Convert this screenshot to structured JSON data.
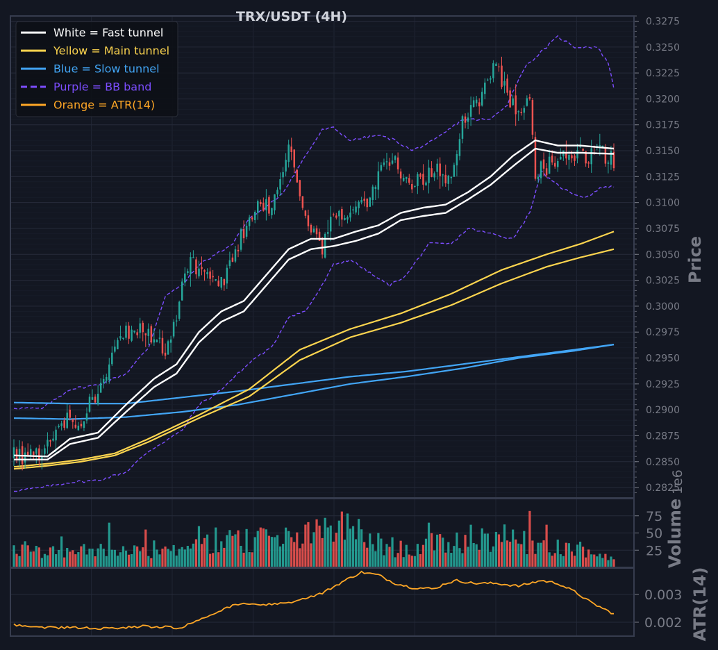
{
  "chart_data": [
    {
      "type": "candlestick",
      "title": "TRX/USDT (4H)",
      "ylabel": "Price",
      "ylim": [
        0.2815,
        0.328
      ],
      "y_ticks": [
        "0.2825",
        "0.2850",
        "0.2875",
        "0.2900",
        "0.2925",
        "0.2950",
        "0.2975",
        "0.3000",
        "0.3025",
        "0.3050",
        "0.3075",
        "0.3100",
        "0.3125",
        "0.3150",
        "0.3175",
        "0.3200",
        "0.3225",
        "0.3250",
        "0.3275"
      ],
      "grid": true,
      "legend_position": "top-left",
      "legend": [
        {
          "label": "White = Fast tunnel",
          "color": "#ffffff",
          "style": "solid"
        },
        {
          "label": "Yellow = Main tunnel",
          "color": "#fdd54f",
          "style": "solid"
        },
        {
          "label": "Blue = Slow tunnel",
          "color": "#42a5f5",
          "style": "solid"
        },
        {
          "label": "Purple = BB band",
          "color": "#7c4dff",
          "style": "dashed"
        },
        {
          "label": "Orange = ATR(14)",
          "color": "#ffa726",
          "style": "solid"
        }
      ],
      "candle_colors": {
        "up": "#26a69a",
        "down": "#ef5350"
      },
      "close_anchors": [
        [
          0,
          0.2855
        ],
        [
          10,
          0.286
        ],
        [
          16,
          0.289
        ],
        [
          20,
          0.289
        ],
        [
          24,
          0.289
        ],
        [
          30,
          0.292
        ],
        [
          35,
          0.295
        ],
        [
          40,
          0.2975
        ],
        [
          48,
          0.2975
        ],
        [
          54,
          0.296
        ],
        [
          58,
          0.299
        ],
        [
          62,
          0.304
        ],
        [
          68,
          0.3035
        ],
        [
          74,
          0.302
        ],
        [
          80,
          0.306
        ],
        [
          86,
          0.3095
        ],
        [
          92,
          0.3095
        ],
        [
          98,
          0.315
        ],
        [
          104,
          0.309
        ],
        [
          110,
          0.305
        ],
        [
          114,
          0.3095
        ],
        [
          120,
          0.3085
        ],
        [
          126,
          0.31
        ],
        [
          130,
          0.313
        ],
        [
          136,
          0.314
        ],
        [
          142,
          0.3115
        ],
        [
          150,
          0.3135
        ],
        [
          156,
          0.312
        ],
        [
          160,
          0.3175
        ],
        [
          164,
          0.319
        ],
        [
          168,
          0.321
        ],
        [
          172,
          0.324
        ],
        [
          176,
          0.32
        ],
        [
          180,
          0.319
        ],
        [
          184,
          0.32
        ],
        [
          186,
          0.313
        ],
        [
          190,
          0.3135
        ],
        [
          196,
          0.315
        ],
        [
          204,
          0.3145
        ],
        [
          210,
          0.3145
        ],
        [
          214,
          0.314
        ]
      ],
      "fast_tunnel": {
        "upper": [
          [
            0,
            0.2856
          ],
          [
            12,
            0.2855
          ],
          [
            20,
            0.2872
          ],
          [
            30,
            0.2878
          ],
          [
            40,
            0.2905
          ],
          [
            50,
            0.293
          ],
          [
            58,
            0.2944
          ],
          [
            66,
            0.2975
          ],
          [
            74,
            0.2995
          ],
          [
            82,
            0.3005
          ],
          [
            90,
            0.303
          ],
          [
            98,
            0.3055
          ],
          [
            106,
            0.3065
          ],
          [
            114,
            0.3065
          ],
          [
            122,
            0.3072
          ],
          [
            130,
            0.3078
          ],
          [
            138,
            0.309
          ],
          [
            146,
            0.3095
          ],
          [
            154,
            0.3098
          ],
          [
            162,
            0.311
          ],
          [
            170,
            0.3125
          ],
          [
            178,
            0.3145
          ],
          [
            186,
            0.316
          ],
          [
            194,
            0.3155
          ],
          [
            202,
            0.3155
          ],
          [
            214,
            0.3152
          ]
        ],
        "lower": [
          [
            0,
            0.2852
          ],
          [
            12,
            0.2852
          ],
          [
            20,
            0.2867
          ],
          [
            30,
            0.2873
          ],
          [
            40,
            0.2898
          ],
          [
            50,
            0.2922
          ],
          [
            58,
            0.2935
          ],
          [
            66,
            0.2965
          ],
          [
            74,
            0.2985
          ],
          [
            82,
            0.2995
          ],
          [
            90,
            0.302
          ],
          [
            98,
            0.3045
          ],
          [
            106,
            0.3055
          ],
          [
            114,
            0.3058
          ],
          [
            122,
            0.3063
          ],
          [
            130,
            0.307
          ],
          [
            138,
            0.3083
          ],
          [
            146,
            0.3087
          ],
          [
            154,
            0.309
          ],
          [
            162,
            0.3103
          ],
          [
            170,
            0.3117
          ],
          [
            178,
            0.3135
          ],
          [
            186,
            0.3152
          ],
          [
            194,
            0.3148
          ],
          [
            202,
            0.3148
          ],
          [
            214,
            0.3147
          ]
        ]
      },
      "main_tunnel": {
        "upper": [
          [
            0,
            0.2845
          ],
          [
            12,
            0.2848
          ],
          [
            24,
            0.2852
          ],
          [
            36,
            0.2858
          ],
          [
            48,
            0.2872
          ],
          [
            66,
            0.2895
          ],
          [
            84,
            0.292
          ],
          [
            102,
            0.2958
          ],
          [
            120,
            0.2978
          ],
          [
            138,
            0.2993
          ],
          [
            156,
            0.3012
          ],
          [
            174,
            0.3035
          ],
          [
            190,
            0.305
          ],
          [
            202,
            0.306
          ],
          [
            214,
            0.3072
          ]
        ],
        "lower": [
          [
            0,
            0.2843
          ],
          [
            12,
            0.2846
          ],
          [
            24,
            0.285
          ],
          [
            36,
            0.2856
          ],
          [
            48,
            0.2869
          ],
          [
            66,
            0.2892
          ],
          [
            84,
            0.2913
          ],
          [
            102,
            0.2948
          ],
          [
            120,
            0.297
          ],
          [
            138,
            0.2984
          ],
          [
            156,
            0.3001
          ],
          [
            174,
            0.3022
          ],
          [
            190,
            0.3038
          ],
          [
            202,
            0.3047
          ],
          [
            214,
            0.3055
          ]
        ]
      },
      "slow_tunnel": {
        "upper": [
          [
            0,
            0.2907
          ],
          [
            20,
            0.2906
          ],
          [
            40,
            0.2906
          ],
          [
            60,
            0.2912
          ],
          [
            80,
            0.2918
          ],
          [
            100,
            0.2925
          ],
          [
            120,
            0.2932
          ],
          [
            140,
            0.2937
          ],
          [
            160,
            0.2944
          ],
          [
            180,
            0.2951
          ],
          [
            200,
            0.2958
          ],
          [
            214,
            0.2963
          ]
        ],
        "lower": [
          [
            0,
            0.2892
          ],
          [
            20,
            0.2891
          ],
          [
            40,
            0.2893
          ],
          [
            60,
            0.2898
          ],
          [
            80,
            0.2905
          ],
          [
            100,
            0.2915
          ],
          [
            120,
            0.2925
          ],
          [
            140,
            0.2932
          ],
          [
            160,
            0.294
          ],
          [
            180,
            0.295
          ],
          [
            200,
            0.2957
          ],
          [
            214,
            0.2963
          ]
        ]
      },
      "bb_band": {
        "upper": [
          [
            0,
            0.2902
          ],
          [
            10,
            0.2901
          ],
          [
            20,
            0.292
          ],
          [
            30,
            0.2924
          ],
          [
            40,
            0.2935
          ],
          [
            48,
            0.296
          ],
          [
            54,
            0.301
          ],
          [
            60,
            0.302
          ],
          [
            66,
            0.304
          ],
          [
            72,
            0.305
          ],
          [
            78,
            0.306
          ],
          [
            84,
            0.3085
          ],
          [
            90,
            0.3095
          ],
          [
            96,
            0.311
          ],
          [
            104,
            0.3145
          ],
          [
            110,
            0.317
          ],
          [
            114,
            0.3172
          ],
          [
            120,
            0.316
          ],
          [
            130,
            0.3165
          ],
          [
            136,
            0.316
          ],
          [
            142,
            0.315
          ],
          [
            150,
            0.316
          ],
          [
            160,
            0.318
          ],
          [
            170,
            0.318
          ],
          [
            176,
            0.3195
          ],
          [
            182,
            0.323
          ],
          [
            188,
            0.3245
          ],
          [
            194,
            0.326
          ],
          [
            200,
            0.325
          ],
          [
            208,
            0.325
          ],
          [
            212,
            0.3235
          ],
          [
            214,
            0.321
          ]
        ],
        "lower": [
          [
            0,
            0.2822
          ],
          [
            10,
            0.2825
          ],
          [
            20,
            0.283
          ],
          [
            30,
            0.2832
          ],
          [
            40,
            0.284
          ],
          [
            48,
            0.286
          ],
          [
            54,
            0.287
          ],
          [
            60,
            0.288
          ],
          [
            66,
            0.2905
          ],
          [
            72,
            0.2915
          ],
          [
            80,
            0.2935
          ],
          [
            86,
            0.295
          ],
          [
            92,
            0.296
          ],
          [
            98,
            0.299
          ],
          [
            104,
            0.2995
          ],
          [
            110,
            0.302
          ],
          [
            114,
            0.304
          ],
          [
            120,
            0.3045
          ],
          [
            128,
            0.303
          ],
          [
            134,
            0.302
          ],
          [
            140,
            0.303
          ],
          [
            148,
            0.306
          ],
          [
            156,
            0.306
          ],
          [
            162,
            0.3075
          ],
          [
            170,
            0.307
          ],
          [
            178,
            0.3065
          ],
          [
            184,
            0.309
          ],
          [
            188,
            0.313
          ],
          [
            192,
            0.312
          ],
          [
            198,
            0.311
          ],
          [
            204,
            0.3105
          ],
          [
            210,
            0.3115
          ],
          [
            214,
            0.3115
          ]
        ]
      },
      "x_count": 215
    },
    {
      "type": "bar",
      "ylabel": "Volume",
      "scale_label": "1e6",
      "ylim": [
        0,
        100
      ],
      "y_ticks": [
        "25",
        "50",
        "75"
      ],
      "volume_anchors": [
        [
          0,
          25
        ],
        [
          20,
          25
        ],
        [
          40,
          30
        ],
        [
          60,
          28
        ],
        [
          70,
          40
        ],
        [
          80,
          45
        ],
        [
          100,
          45
        ],
        [
          110,
          55
        ],
        [
          118,
          65
        ],
        [
          130,
          38
        ],
        [
          140,
          28
        ],
        [
          150,
          38
        ],
        [
          160,
          42
        ],
        [
          172,
          50
        ],
        [
          180,
          40
        ],
        [
          190,
          38
        ],
        [
          200,
          30
        ],
        [
          214,
          15
        ]
      ],
      "spikes": [
        [
          4,
          38
        ],
        [
          17,
          45
        ],
        [
          34,
          65
        ],
        [
          47,
          55
        ],
        [
          66,
          60
        ],
        [
          72,
          58
        ],
        [
          88,
          58
        ],
        [
          111,
          72
        ],
        [
          116,
          68
        ],
        [
          121,
          60
        ],
        [
          148,
          65
        ],
        [
          163,
          62
        ],
        [
          173,
          48
        ],
        [
          178,
          55
        ],
        [
          184,
          82
        ],
        [
          190,
          62
        ],
        [
          203,
          30
        ]
      ]
    },
    {
      "type": "line",
      "ylabel": "ATR(14)",
      "ylim": [
        0.0015,
        0.00395
      ],
      "y_ticks": [
        "0.002",
        "0.003"
      ],
      "atr_anchors": [
        [
          0,
          0.0019
        ],
        [
          8,
          0.00182
        ],
        [
          20,
          0.0018
        ],
        [
          30,
          0.00178
        ],
        [
          38,
          0.0018
        ],
        [
          46,
          0.00185
        ],
        [
          54,
          0.00183
        ],
        [
          60,
          0.0018
        ],
        [
          66,
          0.0021
        ],
        [
          74,
          0.00245
        ],
        [
          80,
          0.00265
        ],
        [
          90,
          0.00262
        ],
        [
          100,
          0.00275
        ],
        [
          110,
          0.00305
        ],
        [
          118,
          0.0035
        ],
        [
          124,
          0.0038
        ],
        [
          130,
          0.0037
        ],
        [
          136,
          0.0034
        ],
        [
          142,
          0.00325
        ],
        [
          150,
          0.0032
        ],
        [
          154,
          0.0034
        ],
        [
          158,
          0.0035
        ],
        [
          164,
          0.0034
        ],
        [
          172,
          0.0034
        ],
        [
          180,
          0.0033
        ],
        [
          188,
          0.0035
        ],
        [
          194,
          0.0034
        ],
        [
          200,
          0.0031
        ],
        [
          206,
          0.0027
        ],
        [
          214,
          0.0023
        ]
      ]
    }
  ]
}
